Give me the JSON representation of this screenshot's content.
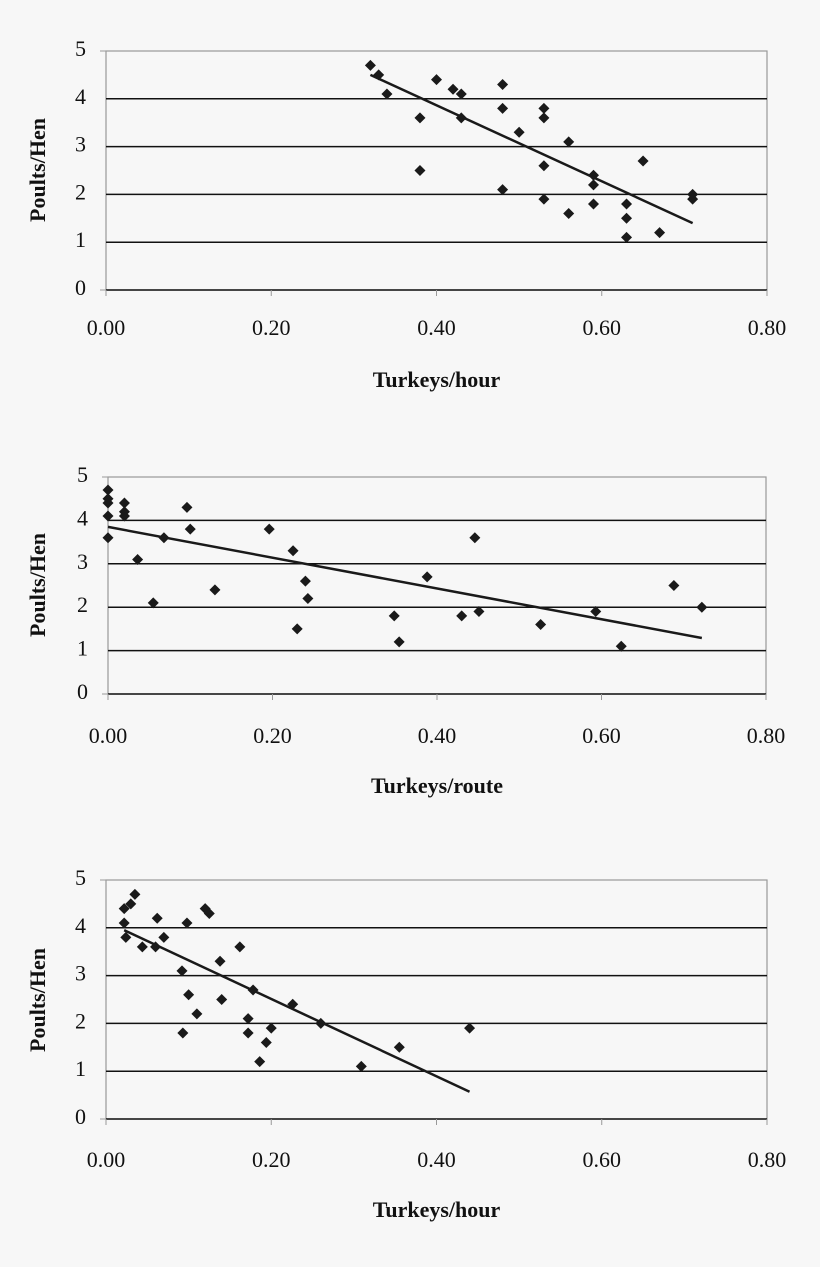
{
  "chart_data": [
    {
      "type": "scatter",
      "xlabel": "Turkeys/hour",
      "ylabel": "Poults/Hen",
      "color": "#1a1a1a",
      "grid": true,
      "x": [
        0.32,
        0.33,
        0.34,
        0.38,
        0.38,
        0.4,
        0.42,
        0.43,
        0.43,
        0.48,
        0.48,
        0.48,
        0.5,
        0.53,
        0.53,
        0.53,
        0.53,
        0.56,
        0.56,
        0.59,
        0.59,
        0.59,
        0.65,
        0.63,
        0.63,
        0.63,
        0.67,
        0.71,
        0.71
      ],
      "values": [
        4.7,
        4.5,
        4.1,
        3.6,
        2.5,
        4.4,
        4.2,
        4.1,
        3.6,
        4.3,
        3.8,
        2.1,
        3.3,
        3.8,
        3.6,
        2.6,
        1.9,
        3.1,
        1.6,
        2.4,
        2.2,
        1.8,
        2.7,
        1.8,
        1.5,
        1.1,
        1.2,
        2.0,
        1.9
      ],
      "trendline": {
        "x": [
          0.32,
          0.71
        ],
        "y": [
          4.5,
          1.4
        ]
      },
      "xlim": [
        0,
        0.8
      ],
      "ylim": [
        0,
        5
      ],
      "xticks": [
        {
          "value": 0,
          "label": "0.00"
        },
        {
          "value": 0.2,
          "label": "0.20"
        },
        {
          "value": 0.4,
          "label": "0.40"
        },
        {
          "value": 0.6,
          "label": "0.60"
        },
        {
          "value": 0.8,
          "label": "0.80"
        }
      ],
      "yticks": [
        0,
        1,
        2,
        3,
        4,
        5
      ]
    },
    {
      "type": "scatter",
      "xlabel": "Turkeys/route",
      "ylabel": "Poults/Hen",
      "color": "#1a1a1a",
      "grid": true,
      "x": [
        0,
        0,
        0,
        0,
        0,
        0.02,
        0.02,
        0.02,
        0.036,
        0.055,
        0.068,
        0.096,
        0.1,
        0.13,
        0.196,
        0.225,
        0.23,
        0.24,
        0.243,
        0.348,
        0.354,
        0.388,
        0.43,
        0.446,
        0.451,
        0.526,
        0.593,
        0.624,
        0.688,
        0.722
      ],
      "values": [
        4.7,
        4.5,
        4.4,
        4.1,
        3.6,
        4.4,
        4.2,
        4.1,
        3.1,
        2.1,
        3.6,
        4.3,
        3.8,
        2.4,
        3.8,
        3.3,
        1.5,
        2.6,
        2.2,
        1.8,
        1.2,
        2.7,
        1.8,
        3.6,
        1.9,
        1.6,
        1.9,
        1.1,
        2.5,
        2.0
      ],
      "trendline": {
        "x": [
          0,
          0.722
        ],
        "y": [
          3.85,
          1.29
        ]
      },
      "xlim": [
        0,
        0.8
      ],
      "ylim": [
        0,
        5
      ],
      "xticks": [
        {
          "value": 0,
          "label": "0.00"
        },
        {
          "value": 0.2,
          "label": "0.20"
        },
        {
          "value": 0.4,
          "label": "0.40"
        },
        {
          "value": 0.6,
          "label": "0.60"
        },
        {
          "value": 0.8,
          "label": "0.80"
        }
      ],
      "yticks": [
        0,
        1,
        2,
        3,
        4,
        5
      ]
    },
    {
      "type": "scatter",
      "xlabel": "Turkeys/hour",
      "ylabel": "Poults/Hen",
      "color": "#1a1a1a",
      "grid": true,
      "x": [
        0.035,
        0.03,
        0.022,
        0.022,
        0.024,
        0.044,
        0.06,
        0.062,
        0.07,
        0.098,
        0.092,
        0.1,
        0.093,
        0.11,
        0.12,
        0.125,
        0.138,
        0.14,
        0.162,
        0.178,
        0.172,
        0.172,
        0.186,
        0.194,
        0.2,
        0.226,
        0.26,
        0.309,
        0.355,
        0.44
      ],
      "values": [
        4.7,
        4.5,
        4.4,
        4.1,
        3.8,
        3.6,
        3.6,
        4.2,
        3.8,
        4.1,
        3.1,
        2.6,
        1.8,
        2.2,
        4.4,
        4.3,
        3.3,
        2.5,
        3.6,
        2.7,
        2.1,
        1.8,
        1.2,
        1.6,
        1.9,
        2.4,
        2.0,
        1.1,
        1.5,
        1.9
      ],
      "trendline": {
        "x": [
          0.022,
          0.44
        ],
        "y": [
          3.95,
          0.57
        ]
      },
      "xlim": [
        0,
        0.8
      ],
      "ylim": [
        0,
        5
      ],
      "xticks": [
        {
          "value": 0,
          "label": "0.00"
        },
        {
          "value": 0.2,
          "label": "0.20"
        },
        {
          "value": 0.4,
          "label": "0.40"
        },
        {
          "value": 0.6,
          "label": "0.60"
        },
        {
          "value": 0.8,
          "label": "0.80"
        }
      ],
      "yticks": [
        0,
        1,
        2,
        3,
        4,
        5
      ]
    }
  ]
}
